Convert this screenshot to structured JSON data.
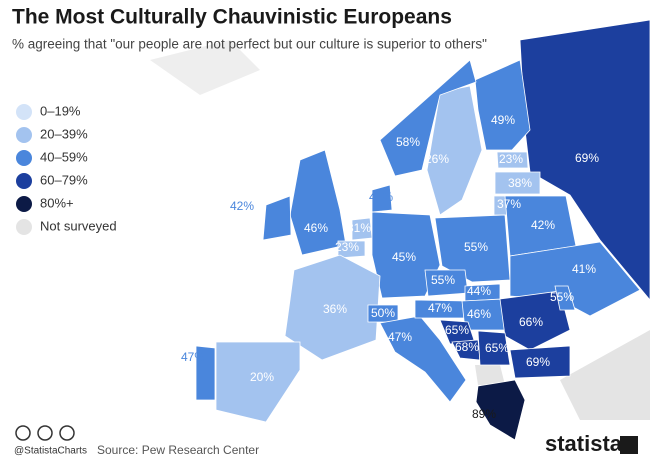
{
  "header": {
    "title": "The Most Culturally Chauvinistic Europeans",
    "subtitle": "% agreeing that \"our people are not perfect but our culture is superior to others\""
  },
  "legend": [
    {
      "label": "0–19%",
      "min": 0,
      "max": 19,
      "color": "#d3e3f8"
    },
    {
      "label": "20–39%",
      "min": 20,
      "max": 39,
      "color": "#a3c3ef"
    },
    {
      "label": "40–59%",
      "min": 40,
      "max": 59,
      "color": "#4a86dc"
    },
    {
      "label": "60–79%",
      "min": 60,
      "max": 79,
      "color": "#1c3f9e"
    },
    {
      "label": "80%+",
      "min": 80,
      "color": "#0c1a46"
    },
    {
      "label": "Not surveyed",
      "color": "#e4e4e4"
    }
  ],
  "regions": [
    {
      "value": 69,
      "label": "69%"
    },
    {
      "value": 49,
      "label": "49%"
    },
    {
      "value": 26,
      "label": "26%"
    },
    {
      "value": 58,
      "label": "58%"
    },
    {
      "value": 23,
      "label": "23%"
    },
    {
      "value": 38,
      "label": "38%"
    },
    {
      "value": 37,
      "label": "37%"
    },
    {
      "value": 46,
      "label": "46%"
    },
    {
      "value": 42,
      "label": "42%"
    },
    {
      "value": 44,
      "label": "44%"
    },
    {
      "value": 31,
      "label": "31%"
    },
    {
      "value": 23,
      "label": "23%"
    },
    {
      "value": 45,
      "label": "45%"
    },
    {
      "value": 55,
      "label": "55%"
    },
    {
      "value": 42,
      "label": "42%"
    },
    {
      "value": 41,
      "label": "41%"
    },
    {
      "value": 36,
      "label": "36%"
    },
    {
      "value": 20,
      "label": "20%"
    },
    {
      "value": 47,
      "label": "47%"
    },
    {
      "value": 50,
      "label": "50%"
    },
    {
      "value": 47,
      "label": "47%"
    },
    {
      "value": 47,
      "label": "47%"
    },
    {
      "value": 55,
      "label": "55%"
    },
    {
      "value": 44,
      "label": "44%"
    },
    {
      "value": 46,
      "label": "46%"
    },
    {
      "value": 66,
      "label": "66%"
    },
    {
      "value": 55,
      "label": "55%"
    },
    {
      "value": 65,
      "label": "65%"
    },
    {
      "value": 68,
      "label": "68%"
    },
    {
      "value": 65,
      "label": "65%"
    },
    {
      "value": 69,
      "label": "69%"
    },
    {
      "value": 89,
      "label": "89%"
    }
  ],
  "footer": {
    "handle": "@StatistaCharts",
    "source": "Source: Pew Research Center",
    "brand": "statista"
  }
}
